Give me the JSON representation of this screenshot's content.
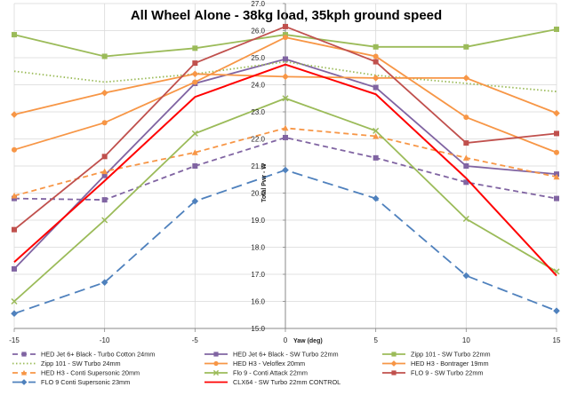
{
  "chart_data": {
    "type": "line",
    "title": "All Wheel Alone - 38kg load, 35kph ground speed",
    "xlabel": "Yaw (deg)",
    "ylabel": "Total Pwr - W",
    "xlim": [
      -15,
      15
    ],
    "ylim": [
      15.0,
      27.0
    ],
    "x_ticks": [
      -15,
      -10,
      -5,
      0,
      5,
      10,
      15
    ],
    "y_ticks": [
      "15.0",
      "16.0",
      "17.0",
      "18.0",
      "19.0",
      "20.0",
      "21.0",
      "22.0",
      "23.0",
      "24.0",
      "25.0",
      "26.0",
      "27.0"
    ],
    "x": [
      -15,
      -10,
      -5,
      0,
      5,
      10,
      15
    ],
    "grid": true,
    "series": [
      {
        "name": "HED Jet 6+ Black - Turbo Cotton 24mm",
        "color": "#8064a2",
        "dash": "dashed",
        "marker": "square",
        "values": [
          19.8,
          19.75,
          21.0,
          22.05,
          21.3,
          20.4,
          19.8
        ]
      },
      {
        "name": "HED Jet 6+ Black - SW Turbo 22mm",
        "color": "#8064a2",
        "dash": "solid",
        "marker": "square",
        "values": [
          17.2,
          20.65,
          24.05,
          24.95,
          23.9,
          21.0,
          20.7
        ]
      },
      {
        "name": "Zipp 101 - SW Turbo 22mm",
        "color": "#9bbb59",
        "dash": "solid",
        "marker": "square",
        "values": [
          25.85,
          25.05,
          25.35,
          25.85,
          25.4,
          25.4,
          26.05
        ]
      },
      {
        "name": "Zipp 101 - SW Turbo 24mm",
        "color": "#9bbb59",
        "dash": "dotted",
        "marker": "none",
        "values": [
          24.5,
          24.1,
          24.4,
          24.85,
          24.35,
          24.05,
          23.75
        ]
      },
      {
        "name": "HED H3 - Veloflex 20mm",
        "color": "#f79646",
        "dash": "solid",
        "marker": "circle",
        "values": [
          21.6,
          22.6,
          24.1,
          25.75,
          25.05,
          22.8,
          21.5
        ]
      },
      {
        "name": "HED H3 - Bontrager 19mm",
        "color": "#f79646",
        "dash": "solid",
        "marker": "diamond",
        "values": [
          22.9,
          23.7,
          24.4,
          24.3,
          24.25,
          24.25,
          22.95
        ]
      },
      {
        "name": "HED H3 - Conti Supersonic 20mm",
        "color": "#f79646",
        "dash": "dashed",
        "marker": "triangle",
        "values": [
          19.9,
          20.8,
          21.5,
          22.4,
          22.1,
          21.3,
          20.6
        ]
      },
      {
        "name": "Flo 9 - Conti Attack 22mm",
        "color": "#9bbb59",
        "dash": "solid",
        "marker": "cross",
        "values": [
          16.0,
          19.0,
          22.2,
          23.5,
          22.3,
          19.05,
          17.1
        ]
      },
      {
        "name": "FLO 9 - SW Turbo 22mm",
        "color": "#c0504d",
        "dash": "solid",
        "marker": "square",
        "values": [
          18.65,
          21.35,
          24.8,
          26.15,
          24.85,
          21.85,
          22.2
        ]
      },
      {
        "name": "FLO 9 Conti Supersonic 23mm",
        "color": "#4f81bd",
        "dash": "longdash",
        "marker": "diamond",
        "values": [
          15.55,
          16.7,
          19.7,
          20.85,
          19.8,
          16.95,
          15.65
        ]
      },
      {
        "name": "CLX64 - SW Turbo 22mm CONTROL",
        "color": "#ff0000",
        "dash": "solid",
        "marker": "none",
        "values": [
          17.45,
          20.45,
          23.55,
          24.75,
          23.65,
          20.55,
          16.95
        ]
      }
    ]
  }
}
